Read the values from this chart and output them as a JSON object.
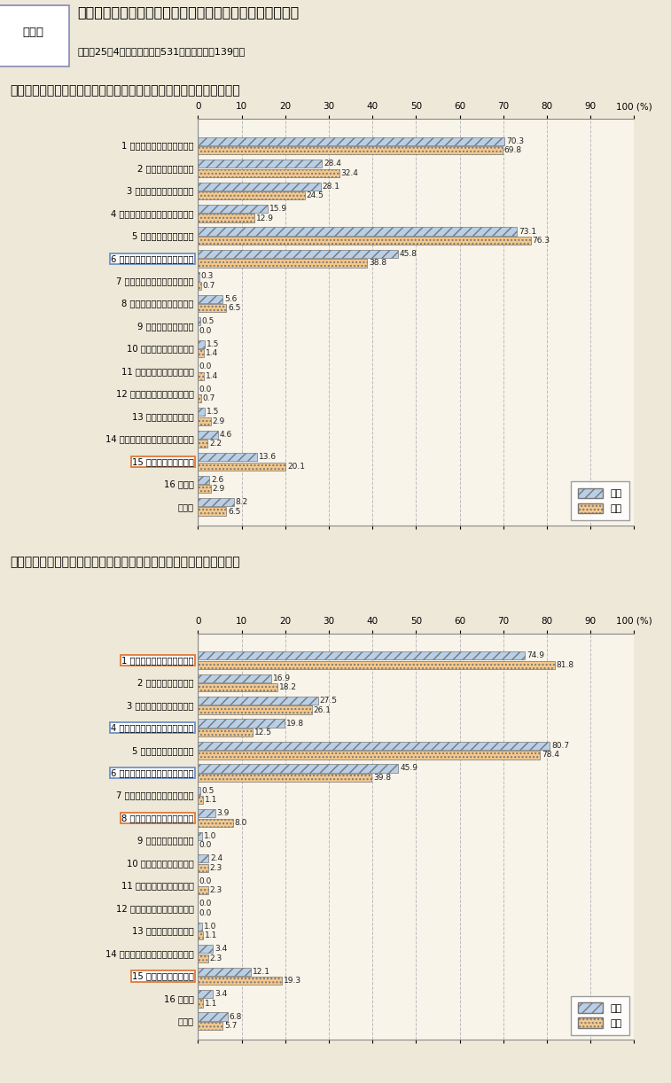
{
  "main_title": "総合職試験等からの新規採用職員に対するアンケート調査",
  "subtitle": "（平成25年4月実施：回答数531人、うち女性139人）",
  "resource_label": "資料２",
  "chart1_title": "国家公務員になろうとした主な理由は何ですか（三つ選択）・全区分",
  "chart2_title": "国家公務員になろうとした主な理由は何ですか（三つ選択）・法文系",
  "categories": [
    "1 公共のために仕事ができる",
    "2 専門知識が生かせる",
    "3 性格・能力が適している",
    "4 キャリア形成として有効である",
    "5 仕事にやりがいがある",
    "6 スケールの大きい仕事ができる",
    "7 能力本位で実績が評価される",
    "8 堅実で生活が安定している",
    "9 国民から尊敬される",
    "10 昇進等に将来性がある",
    "11 給与等の勤務条件がよい",
    "12 民間に比べて余裕がもてる",
    "13 教授等に勧められた",
    "14 家族や先輩・友人に勧められた",
    "15 職場の雰囲気がよい",
    "16 その他",
    "無回答"
  ],
  "chart1_male": [
    70.3,
    28.4,
    28.1,
    15.9,
    73.1,
    45.8,
    0.3,
    5.6,
    0.5,
    1.5,
    0.0,
    0.0,
    1.5,
    4.6,
    13.6,
    2.6,
    8.2
  ],
  "chart1_female": [
    69.8,
    32.4,
    24.5,
    12.9,
    76.3,
    38.8,
    0.7,
    6.5,
    0.0,
    1.4,
    1.4,
    0.7,
    2.9,
    2.2,
    20.1,
    2.9,
    6.5
  ],
  "chart2_male": [
    74.9,
    16.9,
    27.5,
    19.8,
    80.7,
    45.9,
    0.5,
    3.9,
    1.0,
    2.4,
    0.0,
    0.0,
    1.0,
    3.4,
    12.1,
    3.4,
    6.8
  ],
  "chart2_female": [
    81.8,
    18.2,
    26.1,
    12.5,
    78.4,
    39.8,
    1.1,
    8.0,
    0.0,
    2.3,
    2.3,
    0.0,
    1.1,
    2.3,
    19.3,
    1.1,
    5.7
  ],
  "male_color": "#b8cfe8",
  "female_color": "#f5c88a",
  "male_hatch": "///",
  "female_hatch": "....",
  "bg_color": "#ede8d8",
  "plot_bg_color": "#f8f4ea",
  "grid_color": "#bbbbbb",
  "xticks": [
    0,
    10,
    20,
    30,
    40,
    50,
    60,
    70,
    80,
    90,
    100
  ],
  "chart1_box": {
    "5": "#7090c8",
    "14": "#e07838"
  },
  "chart2_box": {
    "0": "#e07838",
    "3": "#7090c8",
    "5": "#7090c8",
    "7": "#e07838",
    "14": "#e07838"
  },
  "legend_male": "男性",
  "legend_female": "女性"
}
